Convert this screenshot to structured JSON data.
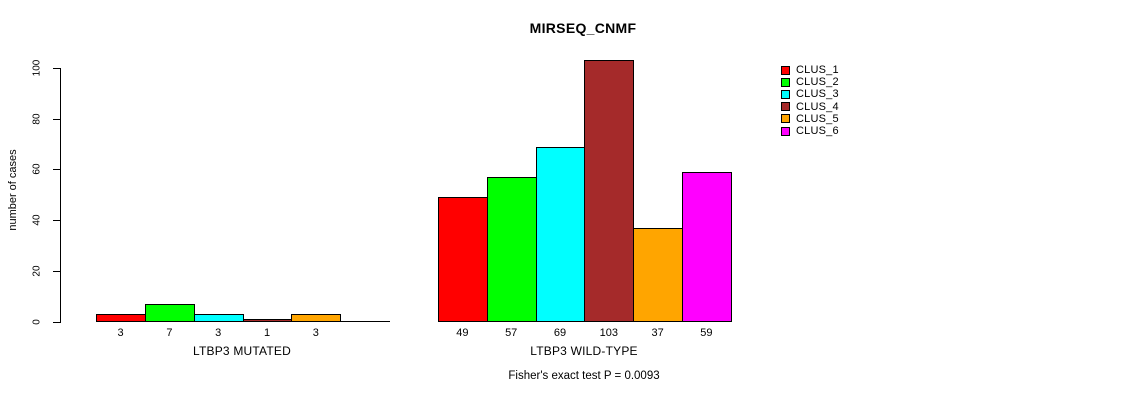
{
  "chart_data": {
    "type": "bar",
    "title": "MIRSEQ_CNMF",
    "ylabel": "number of cases",
    "xlabel": "",
    "ylim": [
      0,
      105
    ],
    "yticks": [
      0,
      20,
      40,
      60,
      80,
      100
    ],
    "grid": false,
    "categories": [
      "CLUS_1",
      "CLUS_2",
      "CLUS_3",
      "CLUS_4",
      "CLUS_5",
      "CLUS_6"
    ],
    "colors": [
      "#FF0000",
      "#00FF00",
      "#00FFFF",
      "#A52A2A",
      "#FFA500",
      "#FF00FF"
    ],
    "groups": [
      {
        "label": "LTBP3 MUTATED",
        "values": [
          3,
          7,
          3,
          1,
          3,
          0
        ],
        "value_labels": [
          "3",
          "7",
          "3",
          "1",
          "3",
          ""
        ]
      },
      {
        "label": "LTBP3 WILD-TYPE",
        "values": [
          49,
          57,
          69,
          103,
          37,
          59
        ],
        "value_labels": [
          "49",
          "57",
          "69",
          "103",
          "37",
          "59"
        ]
      }
    ],
    "legend": {
      "position": "right",
      "entries": [
        "CLUS_1",
        "CLUS_2",
        "CLUS_3",
        "CLUS_4",
        "CLUS_5",
        "CLUS_6"
      ]
    },
    "footnote": "Fisher's exact test P = 0.0093"
  }
}
